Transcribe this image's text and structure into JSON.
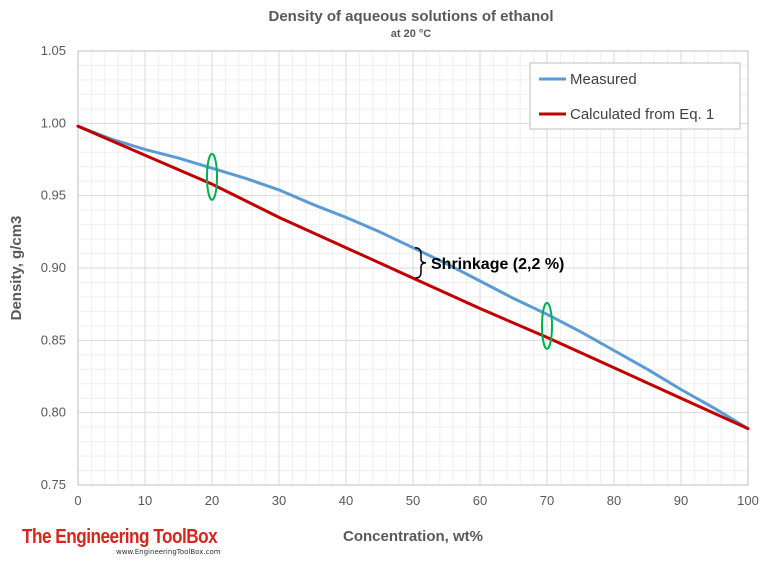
{
  "chart_data": {
    "type": "line",
    "title": "Density of aqueous solutions of ethanol",
    "subtitle": "at 20 °C",
    "xlabel": "Concentration, wt%",
    "ylabel": "Density, g/cm3",
    "xlim": [
      0,
      100
    ],
    "ylim": [
      0.75,
      1.05
    ],
    "x_ticks": [
      "0",
      "10",
      "20",
      "30",
      "40",
      "50",
      "60",
      "70",
      "80",
      "90",
      "100"
    ],
    "y_ticks": [
      "0.75",
      "0.80",
      "0.85",
      "0.90",
      "0.95",
      "1.00",
      "1.05"
    ],
    "grid": true,
    "legend_position": "top-right",
    "series": [
      {
        "name": "Measured",
        "color": "#5b9bd5",
        "x": [
          0,
          5,
          10,
          15,
          20,
          25,
          30,
          35,
          40,
          45,
          50,
          55,
          60,
          65,
          70,
          75,
          80,
          85,
          90,
          95,
          100
        ],
        "y": [
          0.998,
          0.989,
          0.982,
          0.976,
          0.969,
          0.962,
          0.954,
          0.944,
          0.935,
          0.925,
          0.914,
          0.903,
          0.891,
          0.879,
          0.868,
          0.856,
          0.843,
          0.83,
          0.816,
          0.803,
          0.789
        ]
      },
      {
        "name": "Calculated from Eq. 1",
        "color": "#c00000",
        "x": [
          0,
          10,
          20,
          30,
          40,
          50,
          60,
          70,
          80,
          90,
          100
        ],
        "y": [
          0.998,
          0.978,
          0.958,
          0.935,
          0.914,
          0.893,
          0.872,
          0.852,
          0.831,
          0.81,
          0.789
        ]
      }
    ],
    "annotations": [
      {
        "text": "Shrinkage (2,2 %)",
        "x": 50,
        "y_low": 0.893,
        "y_high": 0.914
      }
    ],
    "markers": [
      {
        "x": 20,
        "y": 0.963,
        "color": "#00b050"
      },
      {
        "x": 70,
        "y": 0.86,
        "color": "#00b050"
      }
    ]
  },
  "watermark": {
    "name": "The Engineering ToolBox",
    "url": "www.EngineeringToolBox.com"
  }
}
